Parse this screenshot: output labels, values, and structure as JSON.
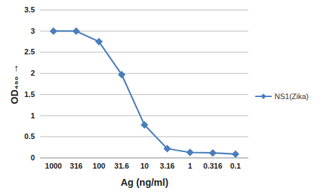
{
  "chart_data": {
    "type": "line",
    "x_label": "Ag (ng/ml)",
    "y_label": "OD₄₅₀",
    "categories": [
      "1000",
      "316",
      "100",
      "31.6",
      "10",
      "3.16",
      "1",
      "0.316",
      "0.1"
    ],
    "series": [
      {
        "name": "NS1(Zika)",
        "color": "#4a7ebb",
        "marker": "diamond",
        "values": [
          3.0,
          3.0,
          2.75,
          1.97,
          0.78,
          0.22,
          0.13,
          0.12,
          0.09
        ]
      }
    ],
    "ylim": [
      0,
      3.5
    ],
    "yticks": [
      0,
      0.5,
      1,
      1.5,
      2,
      2.5,
      3,
      3.5
    ],
    "grid": true,
    "legend": "right"
  }
}
